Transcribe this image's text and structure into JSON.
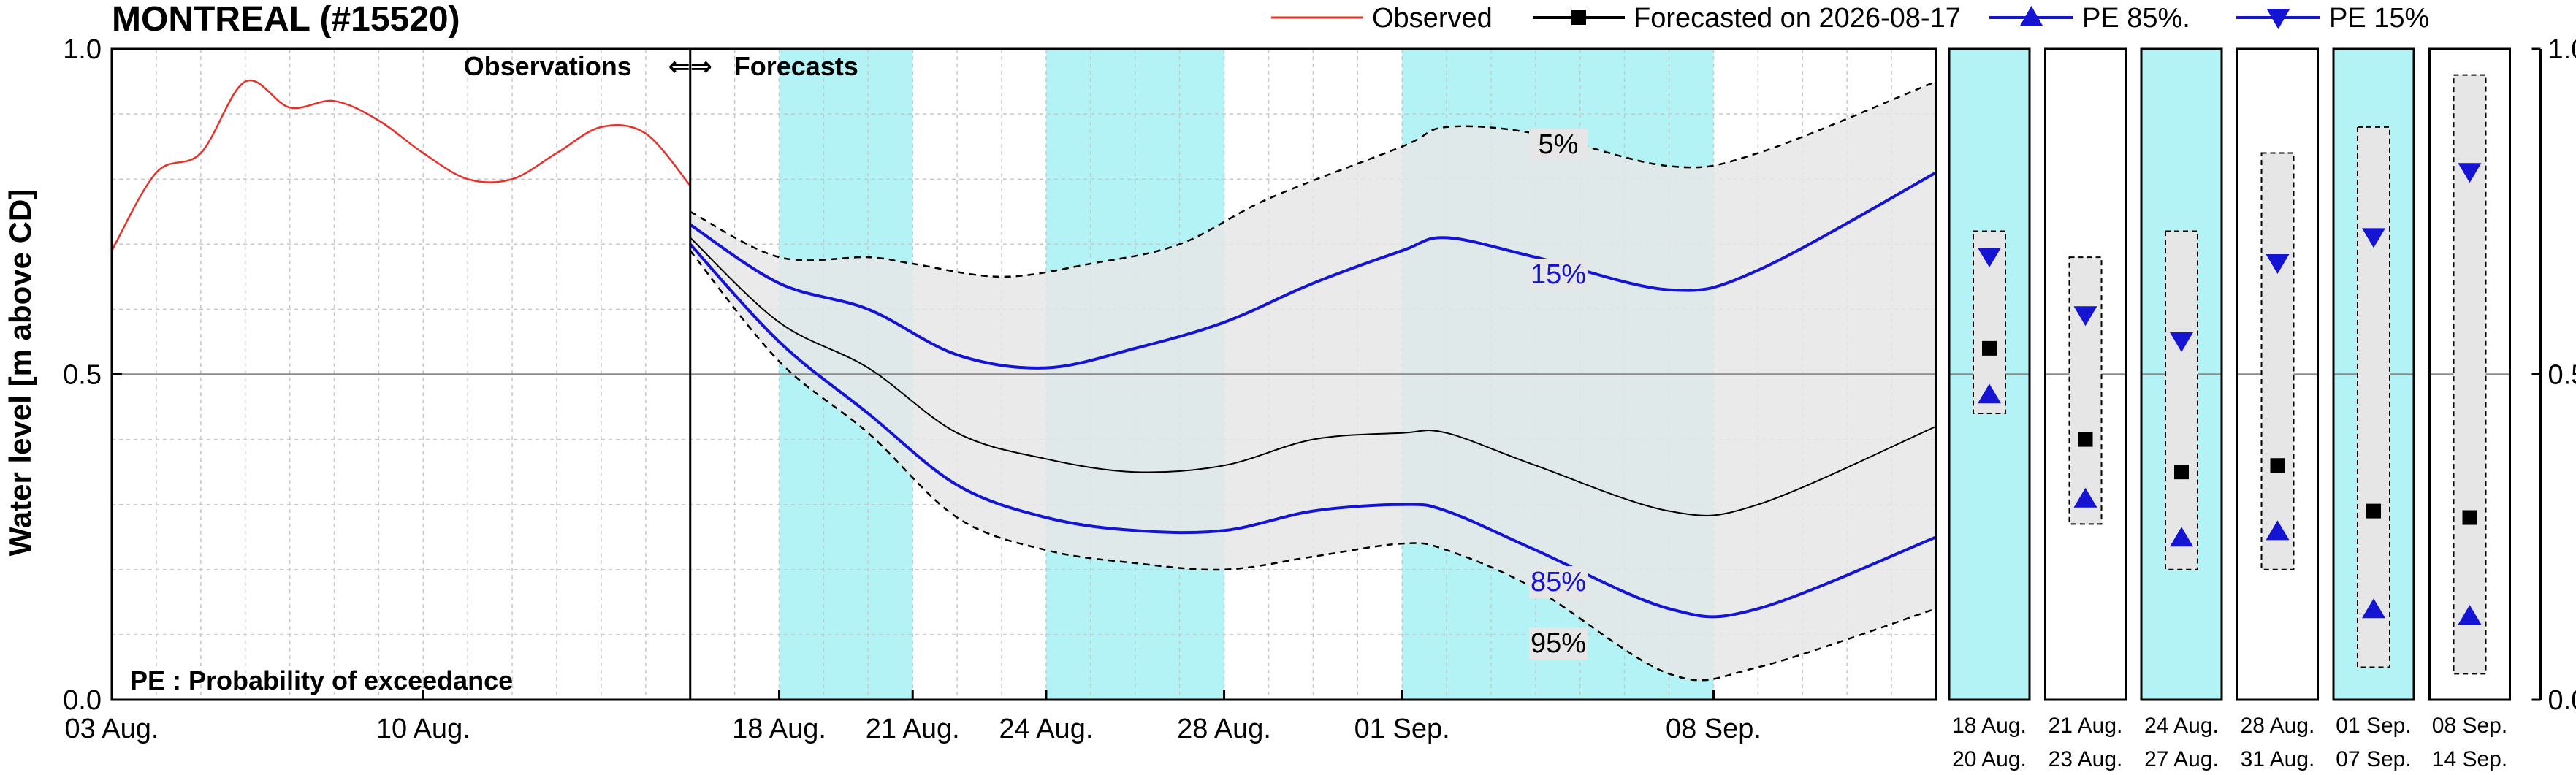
{
  "chart_data": {
    "type": "line",
    "title": "MONTREAL (#15520)",
    "ylabel": "Water level [m above CD]",
    "ylim": [
      0,
      1
    ],
    "yticks": [
      "0.0",
      "0.5",
      "1.0"
    ],
    "xlim": [
      "2026-08-03",
      "2026-09-13"
    ],
    "forecast_start": "2026-08-16",
    "xticks": [
      {
        "date": "2026-08-03",
        "label": "03 Aug."
      },
      {
        "date": "2026-08-10",
        "label": "10 Aug."
      },
      {
        "date": "2026-08-18",
        "label": "18 Aug."
      },
      {
        "date": "2026-08-21",
        "label": "21 Aug."
      },
      {
        "date": "2026-08-24",
        "label": "24 Aug."
      },
      {
        "date": "2026-08-28",
        "label": "28 Aug."
      },
      {
        "date": "2026-09-01",
        "label": "01 Sep."
      },
      {
        "date": "2026-09-08",
        "label": "08 Sep."
      }
    ],
    "grid": true,
    "legend_position": "top-right",
    "legend": [
      {
        "name": "Observed",
        "color": "#e8302a",
        "marker": "none"
      },
      {
        "name": "Forecasted on 2026-08-17",
        "color": "#000000",
        "marker": "square"
      },
      {
        "name": "PE 85%.",
        "color": "#1414d2",
        "marker": "triangle-up"
      },
      {
        "name": "PE 15%",
        "color": "#1414d2",
        "marker": "triangle-down"
      }
    ],
    "annotations": {
      "obs_label": "Observations",
      "arrows": "⇐⇒",
      "fc_label": "Forecasts",
      "pe_note": "PE : Probability of exceedance"
    },
    "shaded_periods": [
      [
        "2026-08-18",
        "2026-08-21"
      ],
      [
        "2026-08-24",
        "2026-08-28"
      ],
      [
        "2026-09-01",
        "2026-09-08"
      ]
    ],
    "observed": [
      {
        "x": "2026-08-03",
        "y": 0.69
      },
      {
        "x": "2026-08-04",
        "y": 0.81
      },
      {
        "x": "2026-08-05",
        "y": 0.84
      },
      {
        "x": "2026-08-06",
        "y": 0.95
      },
      {
        "x": "2026-08-07",
        "y": 0.91
      },
      {
        "x": "2026-08-08",
        "y": 0.92
      },
      {
        "x": "2026-08-09",
        "y": 0.89
      },
      {
        "x": "2026-08-10",
        "y": 0.84
      },
      {
        "x": "2026-08-11",
        "y": 0.8
      },
      {
        "x": "2026-08-12",
        "y": 0.8
      },
      {
        "x": "2026-08-13",
        "y": 0.84
      },
      {
        "x": "2026-08-14",
        "y": 0.88
      },
      {
        "x": "2026-08-15",
        "y": 0.87
      },
      {
        "x": "2026-08-16",
        "y": 0.79
      }
    ],
    "series": [
      {
        "name": "5%",
        "values": [
          {
            "x": "2026-08-16",
            "y": 0.75
          },
          {
            "x": "2026-08-18",
            "y": 0.68
          },
          {
            "x": "2026-08-20",
            "y": 0.68
          },
          {
            "x": "2026-08-21",
            "y": 0.67
          },
          {
            "x": "2026-08-23",
            "y": 0.65
          },
          {
            "x": "2026-08-25",
            "y": 0.67
          },
          {
            "x": "2026-08-27",
            "y": 0.7
          },
          {
            "x": "2026-08-29",
            "y": 0.77
          },
          {
            "x": "2026-09-01",
            "y": 0.85
          },
          {
            "x": "2026-09-02",
            "y": 0.88
          },
          {
            "x": "2026-09-04",
            "y": 0.87
          },
          {
            "x": "2026-09-07",
            "y": 0.82
          },
          {
            "x": "2026-09-09",
            "y": 0.84
          },
          {
            "x": "2026-09-13",
            "y": 0.95
          }
        ]
      },
      {
        "name": "15%",
        "values": [
          {
            "x": "2026-08-16",
            "y": 0.73
          },
          {
            "x": "2026-08-18",
            "y": 0.64
          },
          {
            "x": "2026-08-20",
            "y": 0.6
          },
          {
            "x": "2026-08-22",
            "y": 0.53
          },
          {
            "x": "2026-08-24",
            "y": 0.51
          },
          {
            "x": "2026-08-26",
            "y": 0.54
          },
          {
            "x": "2026-08-28",
            "y": 0.58
          },
          {
            "x": "2026-08-30",
            "y": 0.64
          },
          {
            "x": "2026-09-01",
            "y": 0.69
          },
          {
            "x": "2026-09-02",
            "y": 0.71
          },
          {
            "x": "2026-09-04",
            "y": 0.68
          },
          {
            "x": "2026-09-07",
            "y": 0.63
          },
          {
            "x": "2026-09-09",
            "y": 0.66
          },
          {
            "x": "2026-09-13",
            "y": 0.81
          }
        ]
      },
      {
        "name": "Forecasted on 2026-08-17",
        "values": [
          {
            "x": "2026-08-16",
            "y": 0.71
          },
          {
            "x": "2026-08-18",
            "y": 0.58
          },
          {
            "x": "2026-08-20",
            "y": 0.51
          },
          {
            "x": "2026-08-22",
            "y": 0.41
          },
          {
            "x": "2026-08-24",
            "y": 0.37
          },
          {
            "x": "2026-08-26",
            "y": 0.35
          },
          {
            "x": "2026-08-28",
            "y": 0.36
          },
          {
            "x": "2026-08-30",
            "y": 0.4
          },
          {
            "x": "2026-09-01",
            "y": 0.41
          },
          {
            "x": "2026-09-02",
            "y": 0.41
          },
          {
            "x": "2026-09-04",
            "y": 0.36
          },
          {
            "x": "2026-09-07",
            "y": 0.29
          },
          {
            "x": "2026-09-09",
            "y": 0.3
          },
          {
            "x": "2026-09-13",
            "y": 0.42
          }
        ]
      },
      {
        "name": "85%",
        "values": [
          {
            "x": "2026-08-16",
            "y": 0.7
          },
          {
            "x": "2026-08-18",
            "y": 0.55
          },
          {
            "x": "2026-08-20",
            "y": 0.44
          },
          {
            "x": "2026-08-22",
            "y": 0.33
          },
          {
            "x": "2026-08-24",
            "y": 0.28
          },
          {
            "x": "2026-08-26",
            "y": 0.26
          },
          {
            "x": "2026-08-28",
            "y": 0.26
          },
          {
            "x": "2026-08-30",
            "y": 0.29
          },
          {
            "x": "2026-09-01",
            "y": 0.3
          },
          {
            "x": "2026-09-02",
            "y": 0.29
          },
          {
            "x": "2026-09-04",
            "y": 0.23
          },
          {
            "x": "2026-09-07",
            "y": 0.14
          },
          {
            "x": "2026-09-09",
            "y": 0.14
          },
          {
            "x": "2026-09-13",
            "y": 0.25
          }
        ]
      },
      {
        "name": "95%",
        "values": [
          {
            "x": "2026-08-16",
            "y": 0.69
          },
          {
            "x": "2026-08-18",
            "y": 0.52
          },
          {
            "x": "2026-08-20",
            "y": 0.41
          },
          {
            "x": "2026-08-22",
            "y": 0.28
          },
          {
            "x": "2026-08-24",
            "y": 0.23
          },
          {
            "x": "2026-08-26",
            "y": 0.21
          },
          {
            "x": "2026-08-28",
            "y": 0.2
          },
          {
            "x": "2026-08-30",
            "y": 0.22
          },
          {
            "x": "2026-09-01",
            "y": 0.24
          },
          {
            "x": "2026-09-02",
            "y": 0.23
          },
          {
            "x": "2026-09-04",
            "y": 0.17
          },
          {
            "x": "2026-09-07",
            "y": 0.04
          },
          {
            "x": "2026-09-09",
            "y": 0.05
          },
          {
            "x": "2026-09-13",
            "y": 0.14
          }
        ]
      }
    ],
    "period_panels": [
      {
        "top": "18  Aug.",
        "bottom": "20  Aug.",
        "shaded": true,
        "fc": 0.54,
        "pe85": 0.47,
        "pe15": 0.68,
        "range": [
          0.44,
          0.72
        ]
      },
      {
        "top": "21  Aug.",
        "bottom": "23  Aug.",
        "shaded": false,
        "fc": 0.4,
        "pe85": 0.31,
        "pe15": 0.59,
        "range": [
          0.27,
          0.68
        ]
      },
      {
        "top": "24  Aug.",
        "bottom": "27  Aug.",
        "shaded": true,
        "fc": 0.35,
        "pe85": 0.25,
        "pe15": 0.55,
        "range": [
          0.2,
          0.72
        ]
      },
      {
        "top": "28  Aug.",
        "bottom": "31  Aug.",
        "shaded": false,
        "fc": 0.36,
        "pe85": 0.26,
        "pe15": 0.67,
        "range": [
          0.2,
          0.84
        ]
      },
      {
        "top": "01  Sep.",
        "bottom": "07  Sep.",
        "shaded": true,
        "fc": 0.29,
        "pe85": 0.14,
        "pe15": 0.71,
        "range": [
          0.05,
          0.88
        ]
      },
      {
        "top": "08  Sep.",
        "bottom": "14  Sep.",
        "shaded": false,
        "fc": 0.28,
        "pe85": 0.13,
        "pe15": 0.81,
        "range": [
          0.04,
          0.96
        ]
      }
    ]
  }
}
